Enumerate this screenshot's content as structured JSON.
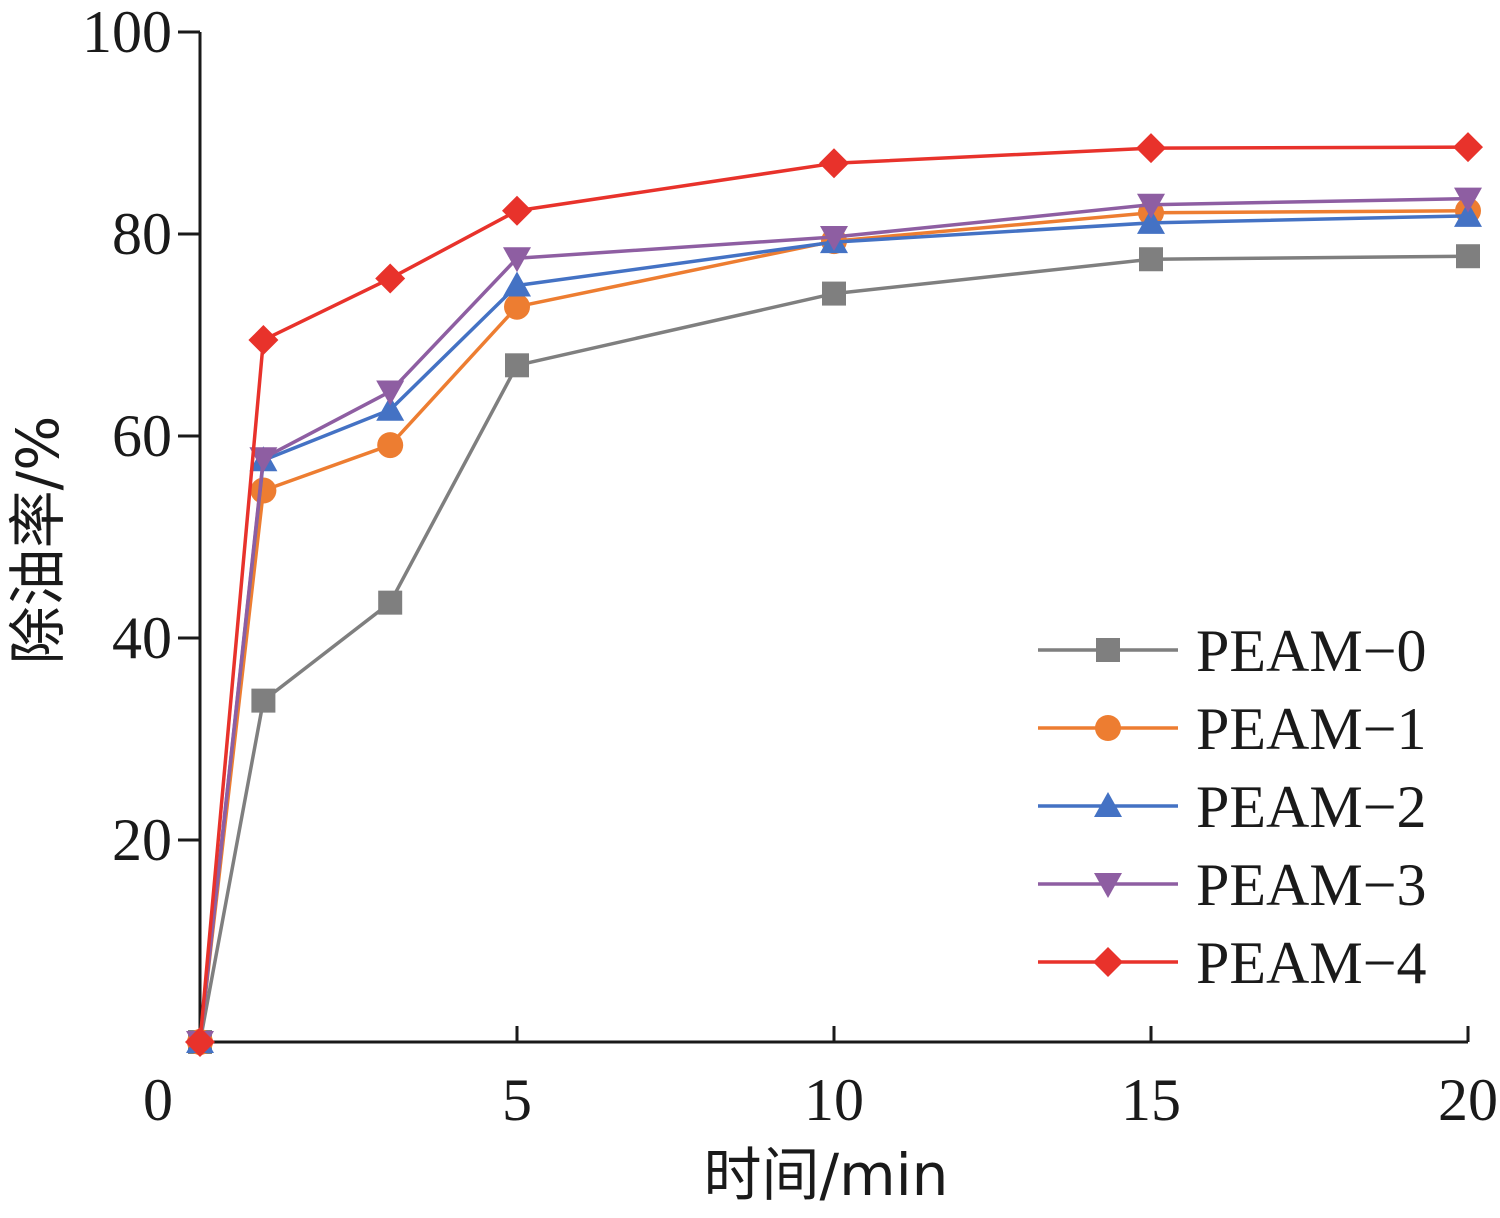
{
  "chart_data": {
    "type": "line",
    "xlabel": "时间/min",
    "ylabel": "除油率/%",
    "xlim": [
      0,
      20
    ],
    "ylim": [
      0,
      100
    ],
    "xticks": [
      0,
      5,
      10,
      15,
      20
    ],
    "yticks": [
      20,
      40,
      60,
      80,
      100
    ],
    "grid": false,
    "legend_position": "bottom-right",
    "x": [
      0,
      1,
      3,
      5,
      10,
      15,
      20
    ],
    "series": [
      {
        "name": "PEAM−0",
        "color": "#7f7f7f",
        "marker": "square",
        "values": [
          0,
          33.8,
          43.5,
          67.0,
          74.1,
          77.5,
          77.8
        ]
      },
      {
        "name": "PEAM−1",
        "color": "#ed7d31",
        "marker": "circle",
        "values": [
          0,
          54.6,
          59.1,
          72.8,
          79.3,
          82.1,
          82.3
        ]
      },
      {
        "name": "PEAM−2",
        "color": "#4472c4",
        "marker": "triangle-up",
        "values": [
          0,
          57.6,
          62.6,
          74.9,
          79.2,
          81.1,
          81.8
        ]
      },
      {
        "name": "PEAM−3",
        "color": "#8e5ea2",
        "marker": "triangle-down",
        "values": [
          0,
          57.8,
          64.4,
          77.6,
          79.7,
          82.9,
          83.5
        ]
      },
      {
        "name": "PEAM−4",
        "color": "#e8322b",
        "marker": "diamond",
        "values": [
          0,
          69.5,
          75.6,
          82.3,
          87.0,
          88.5,
          88.6
        ]
      }
    ]
  }
}
